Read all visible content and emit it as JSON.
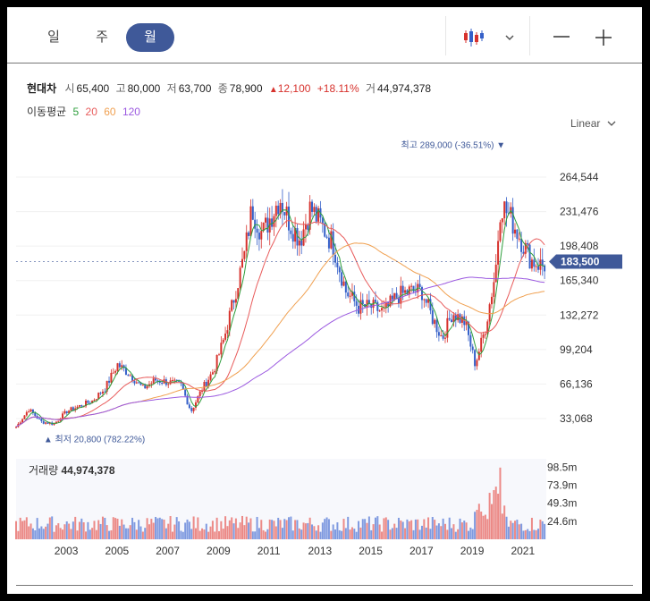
{
  "tabs": [
    {
      "label": "일"
    },
    {
      "label": "주"
    },
    {
      "label": "월"
    }
  ],
  "active_tab": "월",
  "toolbar": {
    "chart_type_icon": "candlestick-icon",
    "dropdown_icon": "chevron-down-icon",
    "zoom_out_icon": "minus-icon",
    "zoom_in_icon": "plus-icon"
  },
  "quote": {
    "name": "현대차",
    "open_label": "시",
    "open": "65,400",
    "high_label": "고",
    "high": "80,000",
    "low_label": "저",
    "low": "63,700",
    "close_label": "종",
    "close": "78,900",
    "change": "12,100",
    "change_pct": "+18.11%",
    "volume_label": "거",
    "volume": "44,974,378"
  },
  "ma": {
    "label": "이동평균",
    "periods": [
      {
        "p": "5",
        "color": "#2e9e3c"
      },
      {
        "p": "20",
        "color": "#e85b5b"
      },
      {
        "p": "60",
        "color": "#f0a050"
      },
      {
        "p": "120",
        "color": "#9b59e0"
      }
    ]
  },
  "scale_label": "Linear",
  "colors": {
    "up": "#d7322d",
    "down": "#3560c9",
    "accent": "#3f5999"
  },
  "chart_data": {
    "type": "candlestick",
    "price_ticks": [
      "264,544",
      "231,476",
      "198,408",
      "165,340",
      "132,272",
      "99,204",
      "66,136",
      "33,068"
    ],
    "price_tick_values": [
      264544,
      231476,
      198408,
      165340,
      132272,
      99204,
      66136,
      33068
    ],
    "x_ticks": [
      "2003",
      "2005",
      "2007",
      "2009",
      "2011",
      "2013",
      "2015",
      "2017",
      "2019",
      "2021"
    ],
    "current_price": "183,500",
    "current_price_value": 183500,
    "max_label": "최고",
    "max_value_text": "289,000 (-36.51%)",
    "max_value": 289000,
    "max_year": 2021.05,
    "min_label": "최저",
    "min_value_text": "20,800 (782.22%)",
    "min_value": 20800,
    "min_year": 2002.1,
    "volume_label": "거래량",
    "volume_value": "44,974,378",
    "volume_ticks": [
      "98.5m",
      "73.9m",
      "49.3m",
      "24.6m"
    ],
    "volume_tick_values": [
      98.5,
      73.9,
      49.3,
      24.6
    ],
    "price_series": [
      [
        2002.0,
        25000
      ],
      [
        2002.5,
        42000
      ],
      [
        2003.0,
        30000
      ],
      [
        2003.5,
        28000
      ],
      [
        2004.0,
        40000
      ],
      [
        2004.5,
        45000
      ],
      [
        2005.0,
        50000
      ],
      [
        2005.5,
        62000
      ],
      [
        2006.0,
        85000
      ],
      [
        2006.5,
        75000
      ],
      [
        2007.0,
        62000
      ],
      [
        2007.5,
        70000
      ],
      [
        2008.0,
        68000
      ],
      [
        2008.5,
        65000
      ],
      [
        2008.9,
        40000
      ],
      [
        2009.3,
        60000
      ],
      [
        2009.8,
        80000
      ],
      [
        2010.2,
        110000
      ],
      [
        2010.6,
        150000
      ],
      [
        2011.0,
        190000
      ],
      [
        2011.3,
        235000
      ],
      [
        2011.7,
        210000
      ],
      [
        2012.0,
        225000
      ],
      [
        2012.4,
        245000
      ],
      [
        2012.8,
        220000
      ],
      [
        2013.2,
        205000
      ],
      [
        2013.6,
        235000
      ],
      [
        2014.0,
        220000
      ],
      [
        2014.5,
        200000
      ],
      [
        2015.0,
        155000
      ],
      [
        2015.5,
        140000
      ],
      [
        2016.0,
        140000
      ],
      [
        2016.5,
        135000
      ],
      [
        2017.0,
        150000
      ],
      [
        2017.5,
        155000
      ],
      [
        2018.0,
        155000
      ],
      [
        2018.4,
        130000
      ],
      [
        2018.8,
        110000
      ],
      [
        2019.2,
        135000
      ],
      [
        2019.7,
        125000
      ],
      [
        2020.1,
        85000
      ],
      [
        2020.5,
        120000
      ],
      [
        2020.9,
        175000
      ],
      [
        2021.1,
        240000
      ],
      [
        2021.5,
        225000
      ],
      [
        2021.9,
        205000
      ],
      [
        2022.3,
        185000
      ],
      [
        2022.7,
        180000
      ]
    ]
  }
}
